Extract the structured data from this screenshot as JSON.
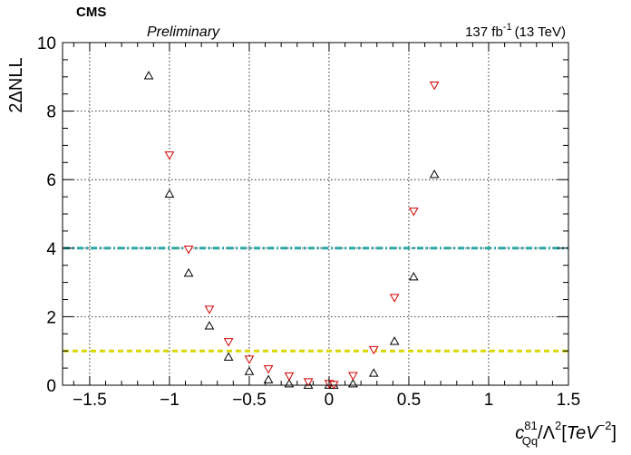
{
  "header": {
    "experiment": "CMS",
    "status": "Preliminary",
    "lumi": "137 fb",
    "lumi_exp": "-1",
    "energy": "(13 TeV)"
  },
  "chart_data": {
    "type": "scatter",
    "title": "",
    "ylabel": "2ΔNLL",
    "xlabel": {
      "c": "c",
      "c_sub": "Qq",
      "c_sup": "81",
      "slash": "/",
      "lambda": "Λ",
      "lambda_sup": "2",
      "bracket_open": "[",
      "unit": "TeV",
      "unit_sup": "−2",
      "bracket_close": "]"
    },
    "xlim": [
      -1.67,
      1.5
    ],
    "ylim": [
      0,
      10
    ],
    "xticks": [
      -1.5,
      -1,
      -0.5,
      0,
      0.5,
      1,
      1.5
    ],
    "xtick_labels": [
      "−1.5",
      "−1",
      "−0.5",
      "0",
      "0.5",
      "1",
      "1.5"
    ],
    "yticks": [
      0,
      2,
      4,
      6,
      8,
      10
    ],
    "ytick_labels": [
      "0",
      "2",
      "4",
      "6",
      "8",
      "10"
    ],
    "grid": true,
    "reference_lines": [
      {
        "y": 4,
        "color": "#2aa8a8",
        "style": "dash-dot"
      },
      {
        "y": 1,
        "color": "#d8d800",
        "style": "dashed"
      }
    ],
    "series": [
      {
        "marker": "triangle-up-open",
        "color": "#000000",
        "points": [
          [
            -1.13,
            9.03
          ],
          [
            -1.0,
            5.58
          ],
          [
            -0.88,
            3.27
          ],
          [
            -0.75,
            1.73
          ],
          [
            -0.63,
            0.82
          ],
          [
            -0.5,
            0.4
          ],
          [
            -0.38,
            0.16
          ],
          [
            -0.25,
            0.04
          ],
          [
            -0.13,
            0.0
          ],
          [
            0.0,
            0.0
          ],
          [
            0.03,
            0.0
          ],
          [
            0.15,
            0.04
          ],
          [
            0.28,
            0.35
          ],
          [
            0.41,
            1.28
          ],
          [
            0.53,
            3.16
          ],
          [
            0.66,
            6.15
          ]
        ]
      },
      {
        "marker": "triangle-down-open",
        "color": "#d40000",
        "points": [
          [
            -1.0,
            6.72
          ],
          [
            -0.88,
            3.97
          ],
          [
            -0.75,
            2.22
          ],
          [
            -0.63,
            1.27
          ],
          [
            -0.5,
            0.76
          ],
          [
            -0.38,
            0.48
          ],
          [
            -0.25,
            0.27
          ],
          [
            -0.13,
            0.1
          ],
          [
            0.0,
            0.05
          ],
          [
            0.03,
            0.02
          ],
          [
            0.15,
            0.28
          ],
          [
            0.28,
            1.04
          ],
          [
            0.41,
            2.56
          ],
          [
            0.53,
            5.08
          ],
          [
            0.66,
            8.76
          ]
        ]
      }
    ]
  }
}
